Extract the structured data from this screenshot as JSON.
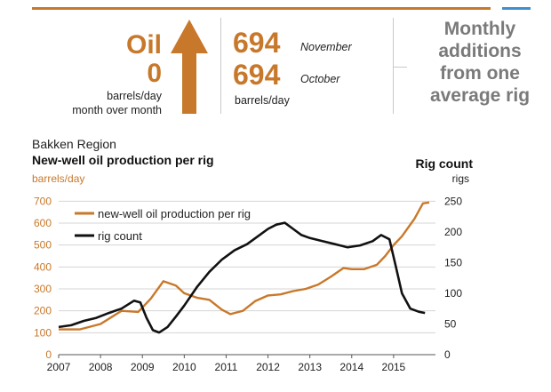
{
  "header": {
    "oil_label": "Oil",
    "oil_change": "0",
    "oil_units_line1": "barrels/day",
    "oil_units_line2": "month over month",
    "arrow_icon": "up-arrow-icon",
    "current_value": "694",
    "current_month": "November",
    "previous_value": "694",
    "previous_month": "October",
    "value_units": "barrels/day",
    "monthly_line1": "Monthly",
    "monthly_line2": "additions",
    "monthly_line3": "from one",
    "monthly_line4": "average rig"
  },
  "colors": {
    "accent": "#c8782a",
    "rig": "#111111",
    "note": "#7a7a7a",
    "topbar_blue": "#3d8fd1"
  },
  "chart_data": {
    "type": "line",
    "region": "Bakken Region",
    "title": "New-well oil production per rig",
    "left_axis_label": "barrels/day",
    "right_axis_title": "Rig count",
    "right_axis_label": "rigs",
    "xlim": [
      2007,
      2016
    ],
    "ylim_left": [
      0,
      750
    ],
    "ylim_right": [
      0,
      268
    ],
    "x_ticks": [
      "2007",
      "2008",
      "2009",
      "2010",
      "2011",
      "2012",
      "2013",
      "2014",
      "2015"
    ],
    "y_ticks_left": [
      "0",
      "100",
      "200",
      "300",
      "400",
      "500",
      "600",
      "700"
    ],
    "y_ticks_right": [
      "0",
      "50",
      "100",
      "150",
      "200",
      "250"
    ],
    "legend_placement": "top-left",
    "series": [
      {
        "name": "new-well oil production per rig",
        "axis": "left",
        "color": "#c8782a",
        "x": [
          2007.0,
          2007.5,
          2008.0,
          2008.5,
          2008.9,
          2009.2,
          2009.5,
          2009.8,
          2010.0,
          2010.3,
          2010.6,
          2010.9,
          2011.1,
          2011.4,
          2011.7,
          2012.0,
          2012.3,
          2012.6,
          2012.9,
          2013.2,
          2013.5,
          2013.8,
          2014.0,
          2014.3,
          2014.6,
          2014.8,
          2015.0,
          2015.2,
          2015.5,
          2015.7,
          2015.85
        ],
        "y": [
          115,
          115,
          140,
          200,
          195,
          255,
          335,
          315,
          280,
          260,
          250,
          205,
          185,
          200,
          245,
          270,
          275,
          290,
          300,
          320,
          355,
          395,
          390,
          390,
          410,
          450,
          500,
          540,
          620,
          690,
          694
        ]
      },
      {
        "name": "rig count",
        "axis": "right",
        "color": "#111111",
        "x": [
          2007.0,
          2007.3,
          2007.6,
          2007.9,
          2008.2,
          2008.5,
          2008.8,
          2008.95,
          2009.1,
          2009.25,
          2009.4,
          2009.6,
          2009.8,
          2010.0,
          2010.3,
          2010.6,
          2010.9,
          2011.2,
          2011.5,
          2011.8,
          2012.0,
          2012.2,
          2012.4,
          2012.6,
          2012.8,
          2013.0,
          2013.3,
          2013.6,
          2013.9,
          2014.2,
          2014.5,
          2014.7,
          2014.9,
          2015.05,
          2015.2,
          2015.4,
          2015.6,
          2015.75
        ],
        "y": [
          45,
          48,
          55,
          60,
          68,
          75,
          88,
          85,
          60,
          40,
          36,
          45,
          62,
          80,
          110,
          135,
          155,
          170,
          180,
          195,
          205,
          212,
          215,
          205,
          195,
          190,
          185,
          180,
          175,
          178,
          185,
          195,
          188,
          145,
          100,
          75,
          70,
          68
        ]
      }
    ]
  }
}
